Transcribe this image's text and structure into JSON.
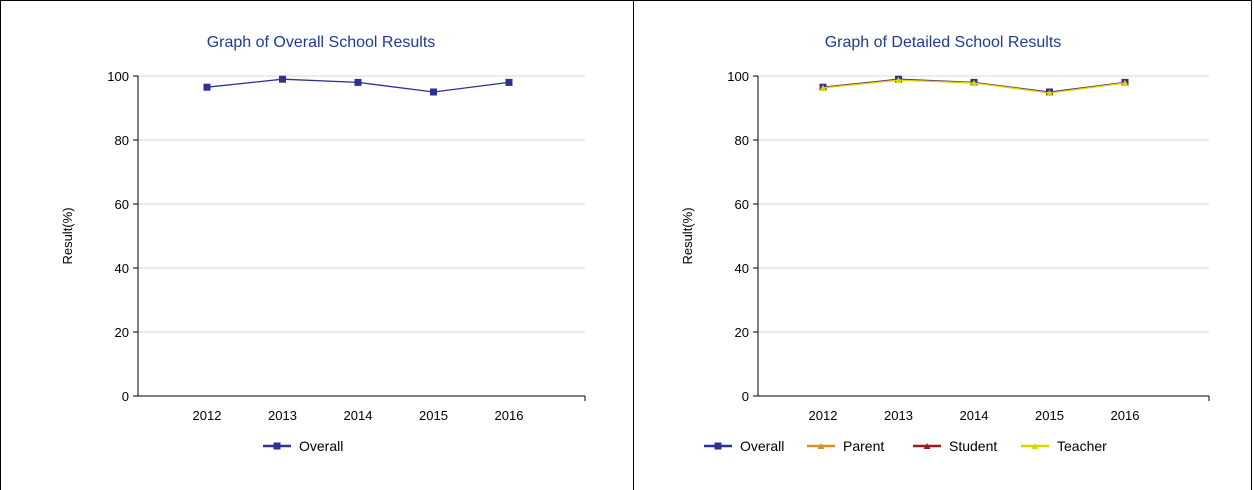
{
  "chart_data": [
    {
      "type": "line",
      "title": "Graph of Overall School Results",
      "xlabel": "",
      "ylabel": "Result(%)",
      "categories": [
        "2012",
        "2013",
        "2014",
        "2015",
        "2016"
      ],
      "ylim": [
        0,
        100
      ],
      "yticks": [
        0,
        20,
        40,
        60,
        80,
        100
      ],
      "grid": true,
      "legend_position": "bottom",
      "series": [
        {
          "name": "Overall",
          "color": "#2e3192",
          "marker": "square",
          "values": [
            96.5,
            99,
            98,
            95,
            98
          ]
        }
      ]
    },
    {
      "type": "line",
      "title": "Graph of Detailed School Results",
      "xlabel": "",
      "ylabel": "Result(%)",
      "categories": [
        "2012",
        "2013",
        "2014",
        "2015",
        "2016"
      ],
      "ylim": [
        0,
        100
      ],
      "yticks": [
        0,
        20,
        40,
        60,
        80,
        100
      ],
      "grid": true,
      "legend_position": "bottom",
      "series": [
        {
          "name": "Overall",
          "color": "#2e3192",
          "marker": "square",
          "values": [
            96.5,
            99,
            98,
            95,
            98
          ]
        },
        {
          "name": "Parent",
          "color": "#d4912a",
          "marker": "triangle",
          "values": [
            96.4,
            98.8,
            97.9,
            94.8,
            97.9
          ]
        },
        {
          "name": "Student",
          "color": "#9b1c1c",
          "marker": "triangle",
          "values": [
            96.4,
            98.8,
            97.9,
            94.8,
            97.9
          ]
        },
        {
          "name": "Teacher",
          "color": "#d8d800",
          "marker": "triangle",
          "values": [
            96.3,
            98.7,
            97.8,
            94.7,
            97.8
          ]
        }
      ]
    }
  ]
}
